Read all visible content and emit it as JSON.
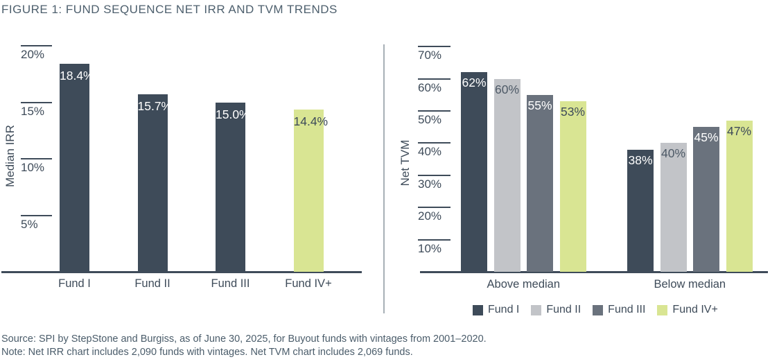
{
  "title": "FIGURE 1: FUND SEQUENCE NET IRR AND TVM TRENDS",
  "footer": {
    "source": "Source: SPI by StepStone and Burgiss, as of June 30, 2025, for Buyout funds with vintages from 2001–2020.",
    "note": "Note: Net IRR chart includes 2,090 funds with vintages. Net TVM chart includes 2,069 funds."
  },
  "colors": {
    "fund_i": "#3E4B59",
    "fund_ii": "#C2C4C8",
    "fund_iii": "#6A727D",
    "fund_iv_plus": "#D9E593",
    "axis": "#3E4B59",
    "divider": "#A7AFB6",
    "title_text": "#4D5F6D",
    "white_label": "#FFFFFF"
  },
  "legend": [
    {
      "label": "Fund I",
      "color": "#3E4B59"
    },
    {
      "label": "Fund II",
      "color": "#C2C4C8"
    },
    {
      "label": "Fund III",
      "color": "#6A727D"
    },
    {
      "label": "Fund IV+",
      "color": "#D9E593"
    }
  ],
  "chart_data": [
    {
      "type": "bar",
      "title": "",
      "ylabel": "Median IRR",
      "xlabel": "",
      "categories": [
        "Fund I",
        "Fund II",
        "Fund III",
        "Fund IV+"
      ],
      "values": [
        18.4,
        15.7,
        15.0,
        14.4
      ],
      "value_labels": [
        "18.4%",
        "15.7%",
        "15.0%",
        "14.4%"
      ],
      "bar_colors": [
        "#3E4B59",
        "#3E4B59",
        "#3E4B59",
        "#D9E593"
      ],
      "value_label_colors": [
        "#FFFFFF",
        "#FFFFFF",
        "#FFFFFF",
        "#3E4B59"
      ],
      "yticks": [
        {
          "v": 20,
          "label": "20%"
        },
        {
          "v": 15,
          "label": "15%"
        },
        {
          "v": 10,
          "label": "10%"
        },
        {
          "v": 5,
          "label": "5%"
        }
      ],
      "ylim": [
        0,
        21.5
      ],
      "grid": false,
      "legend_position": "none"
    },
    {
      "type": "bar",
      "title": "",
      "ylabel": "Net TVM",
      "xlabel": "",
      "categories": [
        "Above median",
        "Below median"
      ],
      "series": [
        {
          "name": "Fund I",
          "values": [
            62,
            38
          ],
          "color": "#3E4B59",
          "value_labels": [
            "62%",
            "38%"
          ],
          "label_color": "#FFFFFF"
        },
        {
          "name": "Fund II",
          "values": [
            60,
            40
          ],
          "color": "#C2C4C8",
          "value_labels": [
            "60%",
            "40%"
          ],
          "label_color": "#4E5A67"
        },
        {
          "name": "Fund III",
          "values": [
            55,
            45
          ],
          "color": "#6A727D",
          "value_labels": [
            "55%",
            "45%"
          ],
          "label_color": "#FFFFFF"
        },
        {
          "name": "Fund IV+",
          "values": [
            53,
            47
          ],
          "color": "#D9E593",
          "value_labels": [
            "53%",
            "47%"
          ],
          "label_color": "#3E4B59"
        }
      ],
      "yticks": [
        {
          "v": 70,
          "label": "70%"
        },
        {
          "v": 60,
          "label": "60%"
        },
        {
          "v": 50,
          "label": "50%"
        },
        {
          "v": 40,
          "label": "40%"
        },
        {
          "v": 30,
          "label": "30%"
        },
        {
          "v": 20,
          "label": "20%"
        },
        {
          "v": 10,
          "label": "10%"
        }
      ],
      "ylim": [
        0,
        75
      ],
      "grid": false,
      "legend_position": "bottom"
    }
  ]
}
